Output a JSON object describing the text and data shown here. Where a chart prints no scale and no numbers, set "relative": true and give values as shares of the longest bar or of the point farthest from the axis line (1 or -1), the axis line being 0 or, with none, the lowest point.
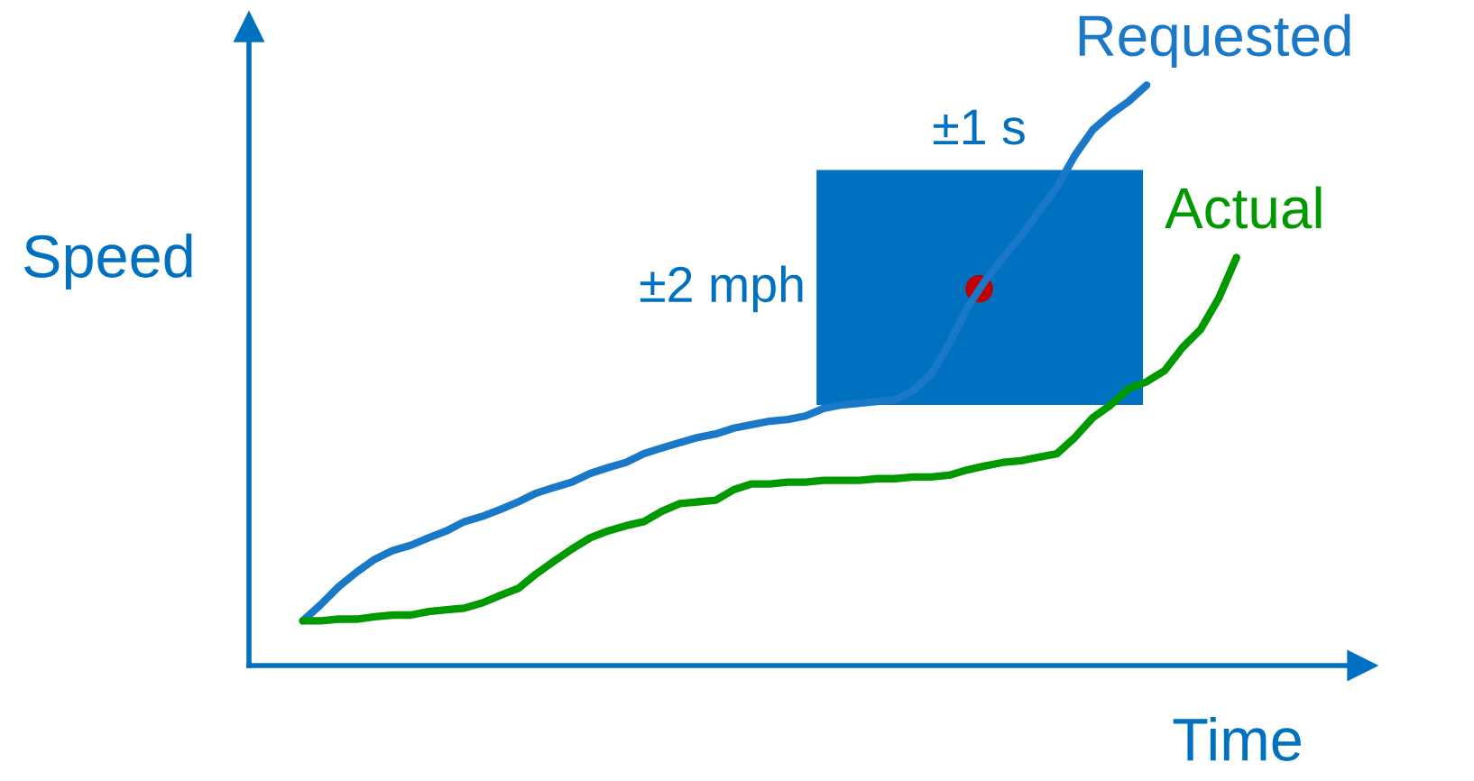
{
  "chart_data": {
    "type": "line",
    "relative": true,
    "xlabel": "Time",
    "ylabel": "Speed",
    "categories": [
      null,
      null,
      null,
      null,
      null,
      null,
      null,
      null,
      null,
      null,
      null,
      null,
      null,
      null,
      null,
      null,
      null,
      null,
      null,
      null,
      null,
      null,
      null,
      null,
      null,
      null,
      null,
      null,
      null,
      null,
      null,
      null,
      null,
      null,
      null,
      null,
      null,
      null,
      null,
      null,
      null,
      null,
      null,
      null,
      null,
      null,
      null,
      null,
      null,
      null,
      null,
      null,
      null
    ],
    "series": [
      {
        "name": "Requested",
        "color": "#1a78c8",
        "values": [
          0.077,
          0.105,
          0.136,
          0.161,
          0.183,
          0.198,
          0.207,
          0.22,
          0.232,
          0.248,
          0.257,
          0.269,
          0.282,
          0.297,
          0.307,
          0.316,
          0.331,
          0.341,
          0.35,
          0.365,
          0.375,
          0.384,
          0.393,
          0.399,
          0.409,
          0.415,
          0.421,
          0.424,
          0.43,
          0.443,
          0.449,
          0.452,
          0.455,
          0.458,
          0.474,
          0.502,
          0.554,
          0.616,
          0.663,
          0.703,
          0.74,
          0.783,
          0.824,
          0.879,
          0.923,
          0.95,
          0.972,
          1,
          null,
          null,
          null,
          null,
          null
        ]
      },
      {
        "name": "Actual",
        "color": "#009900",
        "values": [
          0.077,
          0.077,
          0.08,
          0.08,
          0.084,
          0.087,
          0.087,
          0.093,
          0.096,
          0.099,
          0.108,
          0.121,
          0.133,
          0.158,
          0.18,
          0.201,
          0.22,
          0.232,
          0.241,
          0.248,
          0.266,
          0.279,
          0.282,
          0.285,
          0.303,
          0.313,
          0.313,
          0.316,
          0.316,
          0.319,
          0.319,
          0.319,
          0.322,
          0.322,
          0.325,
          0.325,
          0.328,
          0.337,
          0.344,
          0.35,
          0.353,
          0.359,
          0.365,
          0.393,
          0.427,
          0.449,
          0.477,
          0.489,
          0.508,
          0.548,
          0.579,
          0.632,
          0.703
        ]
      }
    ],
    "annotations": [
      "±1 s",
      "±2 mph"
    ],
    "legend": false,
    "grid": false
  }
}
